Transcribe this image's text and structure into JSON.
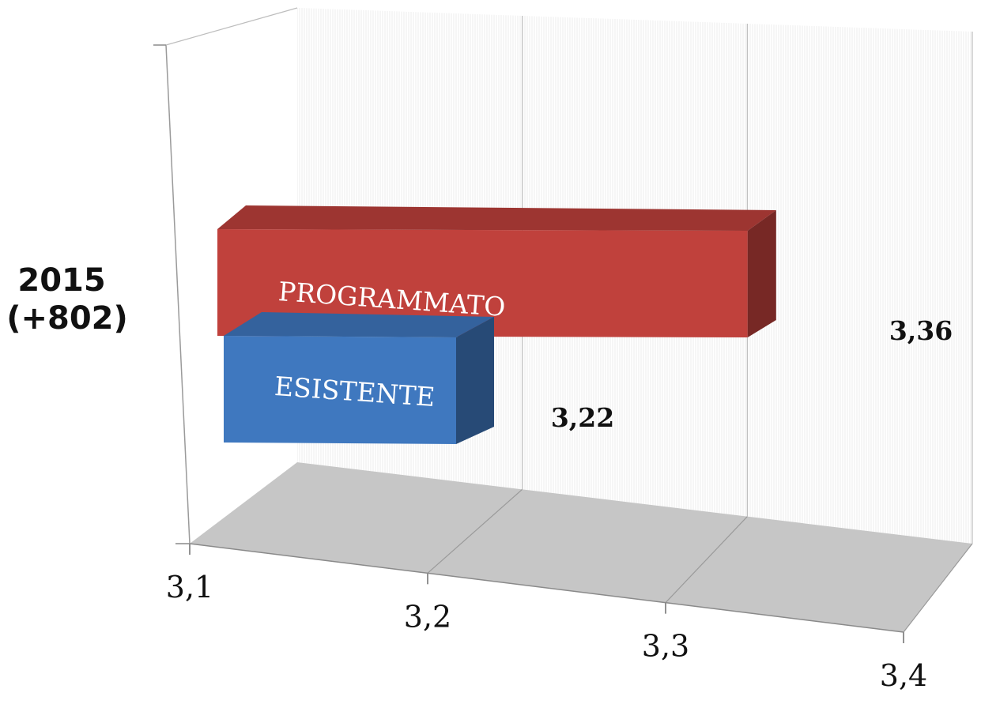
{
  "chart_data": {
    "type": "bar",
    "orientation": "horizontal",
    "three_d": true,
    "category": {
      "line1": "2015",
      "line2": "(+802)"
    },
    "series": [
      {
        "name": "PROGRAMMATO",
        "value": 3.36,
        "value_label": "3,36",
        "color": "#c0413c"
      },
      {
        "name": "ESISTENTE",
        "value": 3.22,
        "value_label": "3,22",
        "color": "#3f78bf"
      }
    ],
    "x_ticks": [
      {
        "value": 3.1,
        "label": "3,1"
      },
      {
        "value": 3.2,
        "label": "3,2"
      },
      {
        "value": 3.3,
        "label": "3,3"
      },
      {
        "value": 3.4,
        "label": "3,4"
      }
    ],
    "xlim": [
      3.1,
      3.4
    ],
    "grid": true,
    "legend": "none"
  }
}
